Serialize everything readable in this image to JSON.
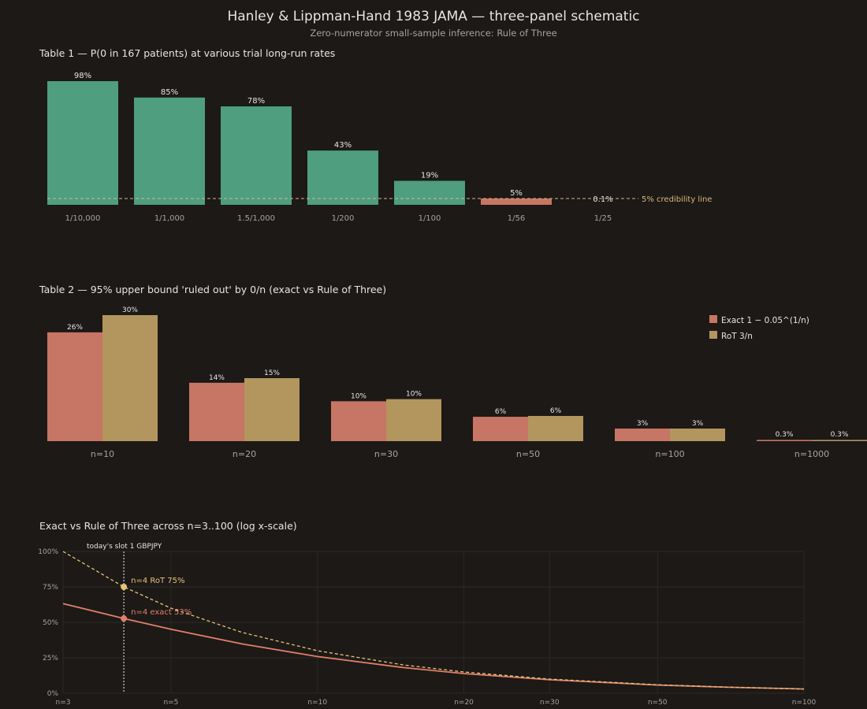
{
  "title": "Hanley & Lippman-Hand 1983 JAMA — three-panel schematic",
  "subtitle": "Zero-numerator small-sample inference: Rule of Three",
  "colors": {
    "background": "#1c1917",
    "text": "#e7e5e4",
    "muted": "#a8a29e",
    "green": "#4e9e7f",
    "red": "#c77564",
    "gold": "#b3955e",
    "line_red": "#e17f6a",
    "line_gold": "#e6c374",
    "ref_line": "#d9b877",
    "grid": "#2c2926"
  },
  "chart_data": [
    {
      "type": "bar",
      "title": "Table 1 — P(0 in 167 patients) at various trial long-run rates",
      "categories": [
        "1/10,000",
        "1/1,000",
        "1.5/1,000",
        "1/200",
        "1/100",
        "1/56",
        "1/25"
      ],
      "values": [
        98,
        85,
        78,
        43,
        19,
        5,
        0.1
      ],
      "value_labels": [
        "98%",
        "85%",
        "78%",
        "43%",
        "19%",
        "5%",
        "0.1%"
      ],
      "ylim": [
        0,
        100
      ],
      "reference_line": {
        "value": 5,
        "label": "5% credibility line"
      },
      "grid": false
    },
    {
      "type": "bar",
      "title": "Table 2 — 95% upper bound 'ruled out' by 0/n (exact vs Rule of Three)",
      "categories": [
        "n=10",
        "n=20",
        "n=30",
        "n=50",
        "n=100",
        "n=1000"
      ],
      "series": [
        {
          "name": "Exact 1 − 0.05^(1/n)",
          "values": [
            25.9,
            13.9,
            9.5,
            5.8,
            3.0,
            0.3
          ],
          "labels": [
            "26%",
            "14%",
            "10%",
            "6%",
            "3%",
            "0.3%"
          ]
        },
        {
          "name": "RoT 3/n",
          "values": [
            30,
            15,
            10,
            6,
            3,
            0.3
          ],
          "labels": [
            "30%",
            "15%",
            "10%",
            "6%",
            "3%",
            "0.3%"
          ]
        }
      ],
      "ylim": [
        0,
        30
      ],
      "legend": "top-right",
      "grid": false
    },
    {
      "type": "line",
      "title": "Exact vs Rule of Three across n=3..100 (log x-scale)",
      "x_scale": "log",
      "xlim": [
        3,
        100
      ],
      "ylim": [
        0,
        100
      ],
      "x_ticks": [
        3,
        5,
        10,
        20,
        30,
        50,
        100
      ],
      "x_tick_labels": [
        "n=3",
        "n=5",
        "n=10",
        "n=20",
        "n=30",
        "n=50",
        "n=100"
      ],
      "y_ticks": [
        0,
        25,
        50,
        75,
        100
      ],
      "y_tick_labels": [
        "0%",
        "25%",
        "50%",
        "75%",
        "100%"
      ],
      "series": [
        {
          "key": "exact",
          "style": "solid",
          "x": [
            3,
            4,
            5,
            7,
            10,
            15,
            20,
            30,
            50,
            70,
            100
          ],
          "y": [
            63.2,
            52.7,
            45.1,
            34.8,
            25.9,
            18.1,
            13.9,
            9.5,
            5.8,
            4.2,
            3.0
          ]
        },
        {
          "key": "rot",
          "style": "dashed",
          "x": [
            3,
            4,
            5,
            7,
            10,
            15,
            20,
            30,
            50,
            70,
            100
          ],
          "y": [
            100,
            75,
            60,
            42.9,
            30,
            20,
            15,
            10,
            6,
            4.3,
            3
          ]
        }
      ],
      "vline": {
        "x": 4,
        "label": "today's slot 1 GBPJPY"
      },
      "annotations": [
        {
          "series": "rot",
          "x": 4,
          "y": 75,
          "label": "n=4 RoT 75%"
        },
        {
          "series": "exact",
          "x": 4,
          "y": 52.7,
          "label": "n=4 exact 53%"
        }
      ],
      "grid": true
    }
  ]
}
